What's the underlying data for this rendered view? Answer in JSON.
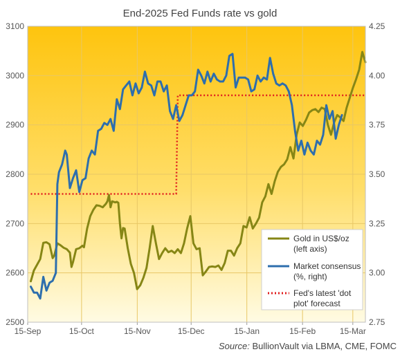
{
  "chart_data": {
    "type": "line",
    "title": "End-2025 Fed Funds rate vs gold",
    "source_label": "Source:",
    "source_text": "BullionVault via LBMA, CME, FOMC",
    "x_tick_labels": [
      "15-Sep",
      "15-Oct",
      "15-Nov",
      "15-Dec",
      "15-Jan",
      "15-Feb",
      "15-Mar"
    ],
    "x_ticks_day": [
      0,
      30,
      61,
      91,
      122,
      153,
      181
    ],
    "x_range_day": [
      0,
      188
    ],
    "y_left": {
      "min": 2500,
      "max": 3100,
      "ticks": [
        2500,
        2600,
        2700,
        2800,
        2900,
        3000,
        3100
      ]
    },
    "y_right": {
      "min": 2.75,
      "max": 4.25,
      "ticks": [
        "2.75",
        "3.00",
        "3.25",
        "3.50",
        "3.75",
        "4.00",
        "4.25"
      ]
    },
    "grid": true,
    "legend_placement": "bottom-right",
    "colors": {
      "gold": "#868615",
      "consensus": "#2d6ead",
      "dotplot": "#e01e1e",
      "bg_top": "#fec40e",
      "bg_bottom": "#fffbe3"
    },
    "series": [
      {
        "name": "Gold in US$/oz (left axis)",
        "legend_lines": [
          "Gold in US$/oz",
          "(left axis)"
        ],
        "axis": "left",
        "points": [
          [
            2,
            2583
          ],
          [
            4,
            2605
          ],
          [
            8,
            2628
          ],
          [
            10,
            2661
          ],
          [
            12,
            2662
          ],
          [
            14,
            2658
          ],
          [
            16,
            2630
          ],
          [
            17,
            2635
          ],
          [
            19,
            2660
          ],
          [
            21,
            2656
          ],
          [
            23,
            2651
          ],
          [
            25,
            2648
          ],
          [
            27,
            2641
          ],
          [
            28,
            2612
          ],
          [
            29,
            2622
          ],
          [
            31,
            2648
          ],
          [
            33,
            2650
          ],
          [
            35,
            2655
          ],
          [
            36,
            2652
          ],
          [
            38,
            2690
          ],
          [
            40,
            2715
          ],
          [
            42,
            2728
          ],
          [
            44,
            2737
          ],
          [
            46,
            2736
          ],
          [
            48,
            2733
          ],
          [
            50,
            2740
          ],
          [
            51,
            2745
          ],
          [
            52,
            2758
          ],
          [
            53,
            2733
          ],
          [
            54,
            2745
          ],
          [
            56,
            2743
          ],
          [
            57,
            2744
          ],
          [
            58,
            2742
          ],
          [
            59,
            2700
          ],
          [
            60,
            2670
          ],
          [
            61,
            2691
          ],
          [
            62,
            2690
          ],
          [
            64,
            2650
          ],
          [
            66,
            2618
          ],
          [
            68,
            2600
          ],
          [
            70,
            2567
          ],
          [
            72,
            2575
          ],
          [
            74,
            2590
          ],
          [
            76,
            2610
          ],
          [
            78,
            2650
          ],
          [
            80,
            2695
          ],
          [
            82,
            2660
          ],
          [
            84,
            2628
          ],
          [
            86,
            2640
          ],
          [
            88,
            2650
          ],
          [
            90,
            2642
          ],
          [
            92,
            2645
          ],
          [
            94,
            2640
          ],
          [
            96,
            2648
          ],
          [
            98,
            2640
          ],
          [
            100,
            2660
          ],
          [
            102,
            2690
          ],
          [
            104,
            2715
          ],
          [
            106,
            2660
          ],
          [
            108,
            2648
          ],
          [
            110,
            2650
          ],
          [
            112,
            2595
          ],
          [
            114,
            2603
          ],
          [
            116,
            2612
          ],
          [
            118,
            2613
          ],
          [
            120,
            2612
          ],
          [
            122,
            2615
          ],
          [
            124,
            2606
          ],
          [
            126,
            2620
          ],
          [
            128,
            2645
          ],
          [
            130,
            2645
          ],
          [
            132,
            2635
          ],
          [
            134,
            2650
          ],
          [
            136,
            2660
          ],
          [
            138,
            2695
          ],
          [
            140,
            2692
          ],
          [
            142,
            2713
          ],
          [
            144,
            2690
          ],
          [
            146,
            2700
          ],
          [
            148,
            2712
          ],
          [
            150,
            2743
          ],
          [
            152,
            2755
          ],
          [
            154,
            2780
          ],
          [
            156,
            2760
          ],
          [
            158,
            2786
          ],
          [
            160,
            2805
          ],
          [
            162,
            2815
          ],
          [
            164,
            2820
          ],
          [
            166,
            2830
          ],
          [
            168,
            2855
          ],
          [
            170,
            2832
          ],
          [
            172,
            2880
          ],
          [
            174,
            2905
          ],
          [
            176,
            2898
          ],
          [
            178,
            2910
          ],
          [
            180,
            2925
          ],
          [
            182,
            2930
          ],
          [
            184,
            2932
          ],
          [
            186,
            2926
          ],
          [
            188,
            2935
          ],
          [
            190,
            2932
          ],
          [
            192,
            2900
          ],
          [
            194,
            2880
          ],
          [
            196,
            2905
          ],
          [
            198,
            2920
          ],
          [
            200,
            2915
          ],
          [
            202,
            2908
          ],
          [
            204,
            2935
          ],
          [
            206,
            2955
          ],
          [
            208,
            2975
          ],
          [
            210,
            2992
          ],
          [
            212,
            3012
          ],
          [
            214,
            3048
          ],
          [
            216,
            3027
          ]
        ]
      },
      {
        "name": "Market consensus (%, right)",
        "legend_lines": [
          "Market consensus",
          "(%, right)"
        ],
        "axis": "right",
        "points": [
          [
            2,
            2.93
          ],
          [
            4,
            2.9
          ],
          [
            6,
            2.9
          ],
          [
            8,
            2.87
          ],
          [
            10,
            2.98
          ],
          [
            12,
            2.91
          ],
          [
            14,
            2.95
          ],
          [
            16,
            2.96
          ],
          [
            18,
            3.0
          ],
          [
            19,
            3.45
          ],
          [
            20,
            3.51
          ],
          [
            22,
            3.55
          ],
          [
            24,
            3.62
          ],
          [
            25,
            3.6
          ],
          [
            27,
            3.43
          ],
          [
            29,
            3.48
          ],
          [
            31,
            3.52
          ],
          [
            33,
            3.41
          ],
          [
            35,
            3.47
          ],
          [
            37,
            3.48
          ],
          [
            39,
            3.58
          ],
          [
            41,
            3.62
          ],
          [
            43,
            3.6
          ],
          [
            45,
            3.72
          ],
          [
            47,
            3.73
          ],
          [
            49,
            3.76
          ],
          [
            51,
            3.75
          ],
          [
            53,
            3.78
          ],
          [
            55,
            3.72
          ],
          [
            57,
            3.88
          ],
          [
            59,
            3.83
          ],
          [
            61,
            3.93
          ],
          [
            63,
            3.95
          ],
          [
            65,
            3.97
          ],
          [
            67,
            3.9
          ],
          [
            69,
            3.96
          ],
          [
            71,
            3.91
          ],
          [
            73,
            3.94
          ],
          [
            75,
            4.02
          ],
          [
            77,
            3.96
          ],
          [
            79,
            3.95
          ],
          [
            81,
            3.9
          ],
          [
            83,
            3.97
          ],
          [
            85,
            3.97
          ],
          [
            87,
            3.92
          ],
          [
            89,
            3.95
          ],
          [
            91,
            3.82
          ],
          [
            93,
            3.78
          ],
          [
            95,
            3.85
          ],
          [
            97,
            3.77
          ],
          [
            99,
            3.8
          ],
          [
            101,
            3.85
          ],
          [
            103,
            3.9
          ],
          [
            105,
            3.9
          ],
          [
            107,
            3.92
          ],
          [
            109,
            4.03
          ],
          [
            111,
            4.0
          ],
          [
            113,
            3.96
          ],
          [
            115,
            4.02
          ],
          [
            117,
            3.97
          ],
          [
            119,
            4.01
          ],
          [
            121,
            3.98
          ],
          [
            123,
            3.97
          ],
          [
            125,
            3.97
          ],
          [
            127,
            4.0
          ],
          [
            129,
            4.1
          ],
          [
            131,
            4.11
          ],
          [
            133,
            3.94
          ],
          [
            135,
            3.99
          ],
          [
            137,
            3.99
          ],
          [
            139,
            3.99
          ],
          [
            141,
            3.98
          ],
          [
            143,
            3.92
          ],
          [
            145,
            3.93
          ],
          [
            147,
            4.0
          ],
          [
            149,
            3.97
          ],
          [
            151,
            3.99
          ],
          [
            153,
            3.98
          ],
          [
            155,
            4.09
          ],
          [
            157,
            4.01
          ],
          [
            159,
            3.96
          ],
          [
            161,
            3.95
          ],
          [
            163,
            3.96
          ],
          [
            165,
            3.95
          ],
          [
            167,
            3.92
          ],
          [
            169,
            3.85
          ],
          [
            171,
            3.72
          ],
          [
            173,
            3.62
          ],
          [
            175,
            3.67
          ],
          [
            177,
            3.6
          ],
          [
            179,
            3.66
          ],
          [
            181,
            3.62
          ],
          [
            183,
            3.6
          ],
          [
            185,
            3.67
          ],
          [
            187,
            3.65
          ],
          [
            189,
            3.7
          ],
          [
            191,
            3.85
          ],
          [
            193,
            3.78
          ],
          [
            195,
            3.82
          ],
          [
            197,
            3.68
          ],
          [
            199,
            3.75
          ],
          [
            201,
            3.8
          ]
        ]
      },
      {
        "name": "Fed's latest 'dot plot' forecast",
        "legend_lines": [
          "Fed's latest 'dot",
          "plot' forecast"
        ],
        "axis": "right",
        "points": [
          [
            2,
            3.4
          ],
          [
            95,
            3.4
          ],
          [
            96,
            3.9
          ],
          [
            216,
            3.9
          ]
        ]
      }
    ]
  }
}
